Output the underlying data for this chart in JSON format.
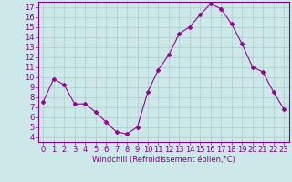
{
  "x": [
    0,
    1,
    2,
    3,
    4,
    5,
    6,
    7,
    8,
    9,
    10,
    11,
    12,
    13,
    14,
    15,
    16,
    17,
    18,
    19,
    20,
    21,
    22,
    23
  ],
  "y": [
    7.5,
    9.8,
    9.2,
    7.3,
    7.3,
    6.5,
    5.5,
    4.5,
    4.3,
    5.0,
    8.5,
    10.7,
    12.2,
    14.3,
    15.0,
    16.2,
    17.3,
    16.8,
    15.3,
    13.3,
    11.0,
    10.5,
    8.5,
    6.8
  ],
  "line_color": "#990099",
  "marker": "D",
  "marker_size": 2,
  "bg_color": "#cce8e8",
  "grid_color": "#aacccc",
  "xlabel": "Windchill (Refroidissement éolien,°C)",
  "xlim": [
    -0.5,
    23.5
  ],
  "ylim": [
    3.5,
    17.5
  ],
  "yticks": [
    4,
    5,
    6,
    7,
    8,
    9,
    10,
    11,
    12,
    13,
    14,
    15,
    16,
    17
  ],
  "xticks": [
    0,
    1,
    2,
    3,
    4,
    5,
    6,
    7,
    8,
    9,
    10,
    11,
    12,
    13,
    14,
    15,
    16,
    17,
    18,
    19,
    20,
    21,
    22,
    23
  ],
  "tick_color": "#880088",
  "spine_color": "#880088",
  "label_color": "#880088",
  "label_fontsize": 6,
  "tick_fontsize": 6
}
